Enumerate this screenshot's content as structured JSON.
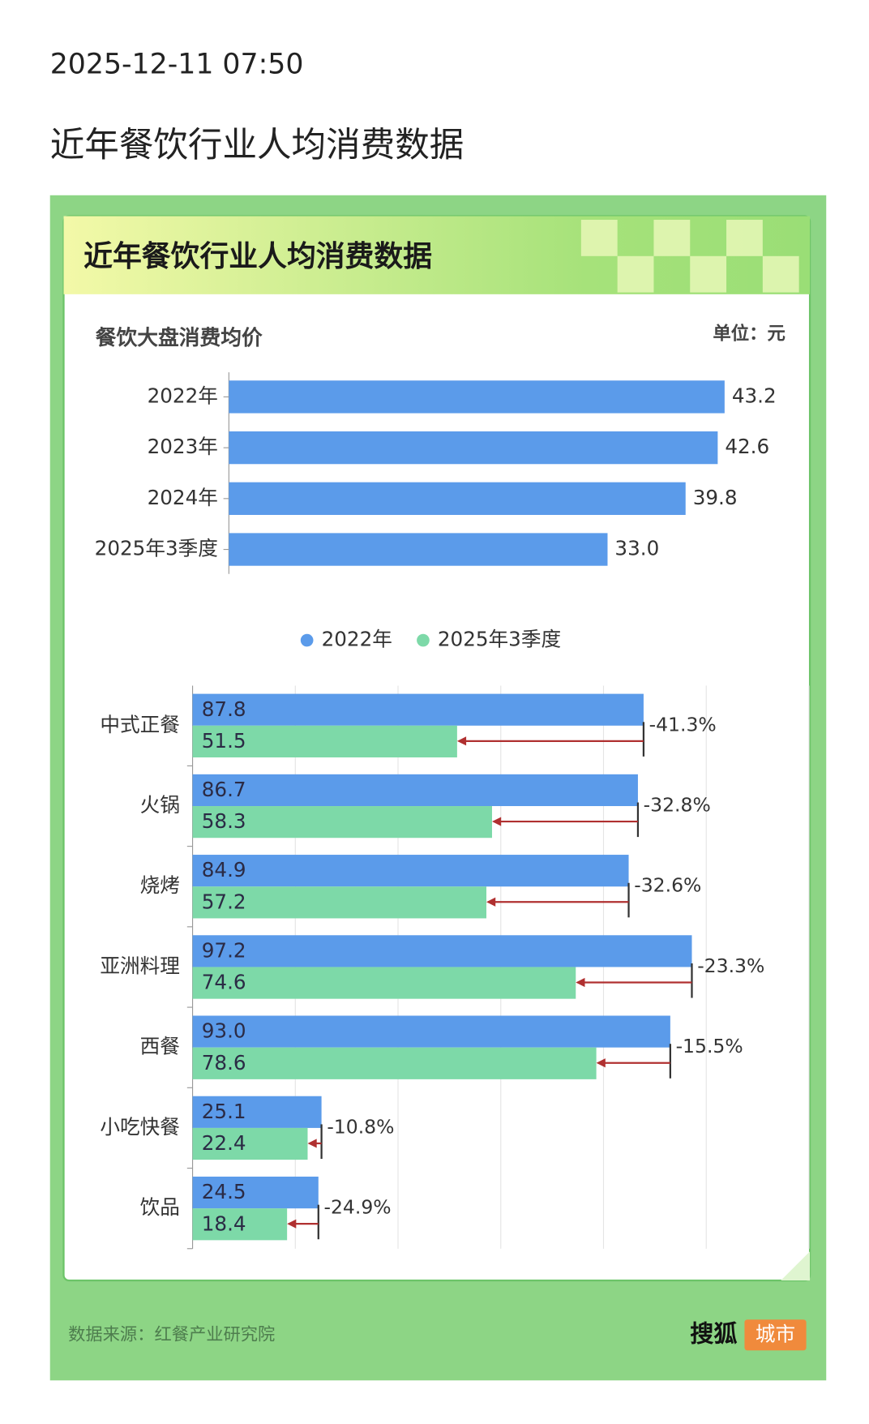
{
  "header": {
    "timestamp": "2025-12-11 07:50",
    "title": "近年餐饮行业人均消费数据"
  },
  "card": {
    "title": "近年餐饮行业人均消费数据"
  },
  "chart_data": [
    {
      "type": "hbar",
      "title": "餐饮大盘消费均价",
      "unit": "单位：元",
      "categories": [
        "2022年",
        "2023年",
        "2024年",
        "2025年3季度"
      ],
      "values": [
        43.2,
        42.6,
        39.8,
        33.0
      ],
      "value_labels": [
        "43.2",
        "42.6",
        "39.8",
        "33.0"
      ],
      "color": "#5b9bea",
      "xlim": [
        0,
        50
      ]
    },
    {
      "type": "grouped-hbar",
      "categories": [
        "中式正餐",
        "火锅",
        "烧烤",
        "亚洲料理",
        "西餐",
        "小吃快餐",
        "饮品"
      ],
      "series": [
        {
          "name": "2022年",
          "color": "#5b9bea",
          "values": [
            87.8,
            86.7,
            84.9,
            97.2,
            93.0,
            25.1,
            24.5
          ],
          "value_labels": [
            "87.8",
            "86.7",
            "84.9",
            "97.2",
            "93.0",
            "25.1",
            "24.5"
          ]
        },
        {
          "name": "2025年3季度",
          "color": "#7dd9a8",
          "values": [
            51.5,
            58.3,
            57.2,
            74.6,
            78.6,
            22.4,
            18.4
          ]
        }
      ],
      "changes": {
        "values": [
          -41.3,
          -32.8,
          -32.6,
          -23.3,
          -15.5,
          -10.8,
          -24.9
        ],
        "value_labels": [
          "-41.3%",
          "-32.8%",
          "-32.6%",
          "-23.3%",
          "-15.5%",
          "-10.8%",
          "-24.9%"
        ],
        "color": "#b03030"
      },
      "xlim": [
        0,
        120
      ],
      "xticks": [
        0,
        20,
        40,
        60,
        80,
        100,
        120
      ],
      "grid": true,
      "legend": "top"
    }
  ],
  "footer": {
    "source": "数据来源：红餐产业研究院",
    "logo": "搜狐",
    "logo_tag": "城市"
  }
}
